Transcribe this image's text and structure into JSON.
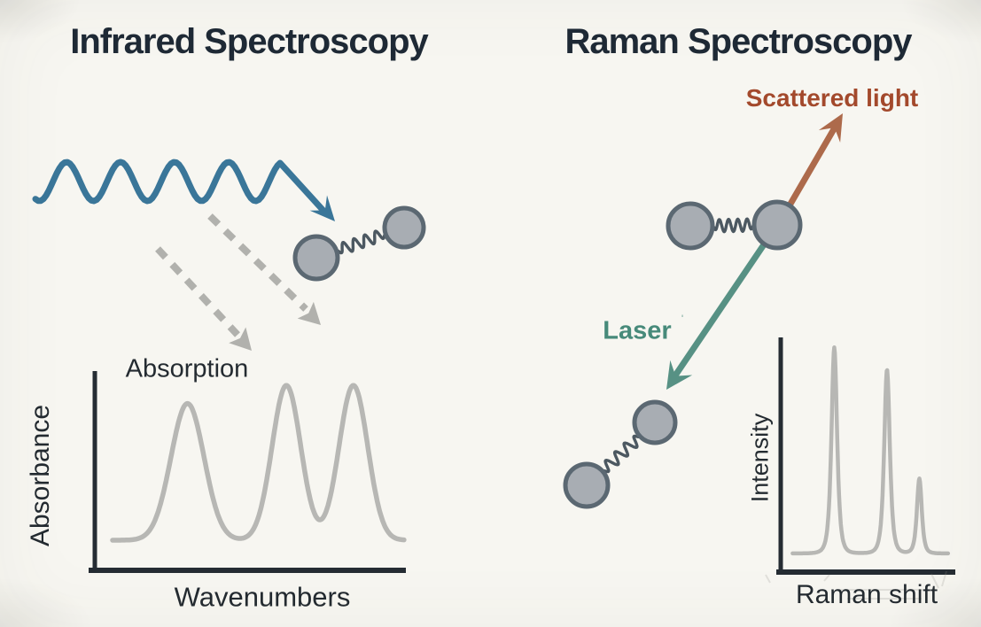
{
  "diagram": {
    "infrared": {
      "title": "Infrared Spectroscopy"
    },
    "raman": {
      "title": "Raman Spectroscopy",
      "scattered_light_label": "Scattered light",
      "laser_label": "Laser",
      "laser_mark": "ˈ"
    }
  },
  "colors": {
    "background": "#f7f6f1",
    "ink": "#1f2a36",
    "label_ink": "#242b31",
    "wave_blue": "#3a7699",
    "dashed_gray": "#b1b1ad",
    "atom_fill": "#a8adb3",
    "atom_stroke": "#5b6872",
    "spring": "#4c5861",
    "scattered_orange": "#ad6a4b",
    "scattered_text": "#a3492c",
    "laser_teal": "#579184",
    "laser_text": "#478a7a",
    "axis": "#252c33",
    "curve_gray": "#b7b7b4"
  },
  "chart_data": [
    {
      "panel": "infrared",
      "type": "line",
      "title": "Absorption",
      "xlabel": "Wavenumbers",
      "ylabel": "Absorbance",
      "x_tick_labels": [],
      "y_tick_labels": [],
      "grid": false,
      "peak_shape": "gaussian",
      "peaks": [
        {
          "center": 0.31,
          "height": 0.83,
          "width": 0.052
        },
        {
          "center": 0.62,
          "height": 0.94,
          "width": 0.045
        },
        {
          "center": 0.83,
          "height": 0.94,
          "width": 0.045
        }
      ],
      "x_range": [
        0.075,
        0.99
      ]
    },
    {
      "panel": "raman",
      "type": "line",
      "title": "",
      "xlabel": "Raman shift",
      "ylabel": "Intensity",
      "x_tick_labels": [],
      "y_tick_labels": [],
      "grid": false,
      "peak_shape": "lorentzian",
      "peaks": [
        {
          "center": 0.32,
          "height": 0.99,
          "width": 0.03
        },
        {
          "center": 0.63,
          "height": 0.885,
          "width": 0.03
        },
        {
          "center": 0.82,
          "height": 0.36,
          "width": 0.026
        }
      ],
      "x_range": [
        0.075,
        0.99
      ]
    }
  ]
}
